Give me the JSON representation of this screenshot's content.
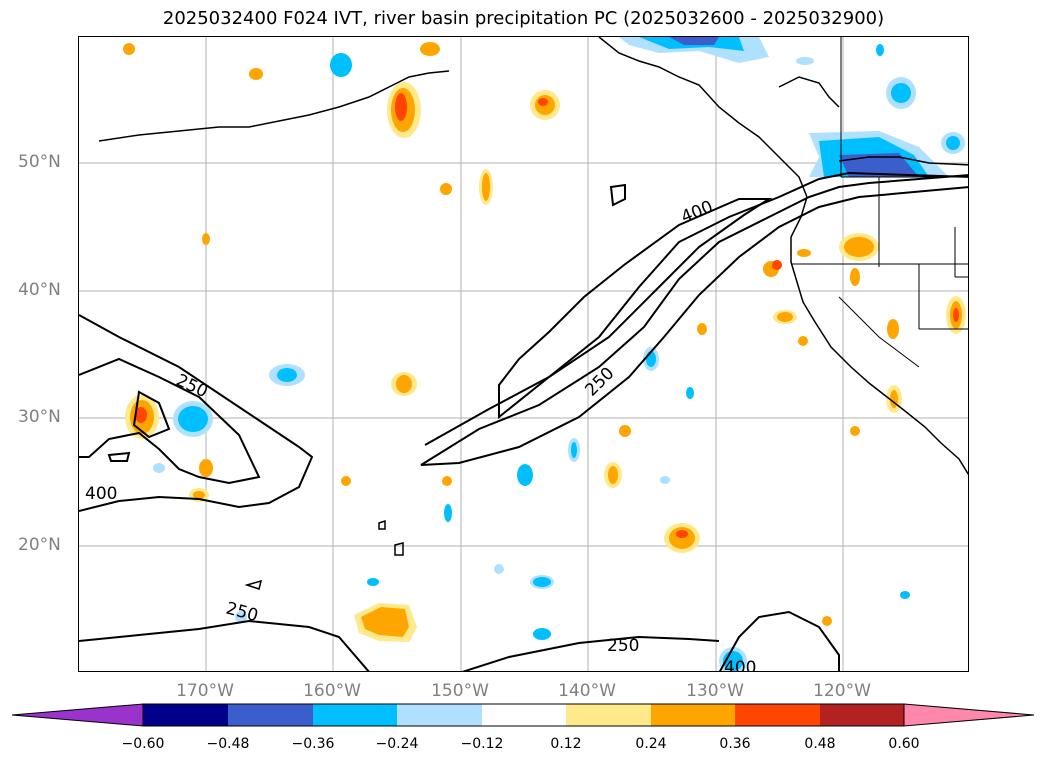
{
  "title": "2025032400 F024 IVT, river basin precipitation PC (2025032600 - 2025032900)",
  "lat_labels": [
    "50°N",
    "40°N",
    "30°N",
    "20°N"
  ],
  "lon_labels": [
    "170°W",
    "160°W",
    "150°W",
    "140°W",
    "130°W",
    "120°W"
  ],
  "contour_labels": [
    "400",
    "250",
    "250",
    "400",
    "250",
    "250",
    "400"
  ],
  "colorbar": {
    "ticks": [
      "−0.60",
      "−0.48",
      "−0.36",
      "−0.24",
      "−0.12",
      "0.12",
      "0.24",
      "0.36",
      "0.48",
      "0.60"
    ],
    "colors": [
      "#9933cc",
      "#00008b",
      "#3a5fcd",
      "#00bfff",
      "#b0e0ff",
      "#ffffff",
      "#ffe98a",
      "#ffa500",
      "#ff4500",
      "#b22222",
      "#ff88aa"
    ]
  }
}
